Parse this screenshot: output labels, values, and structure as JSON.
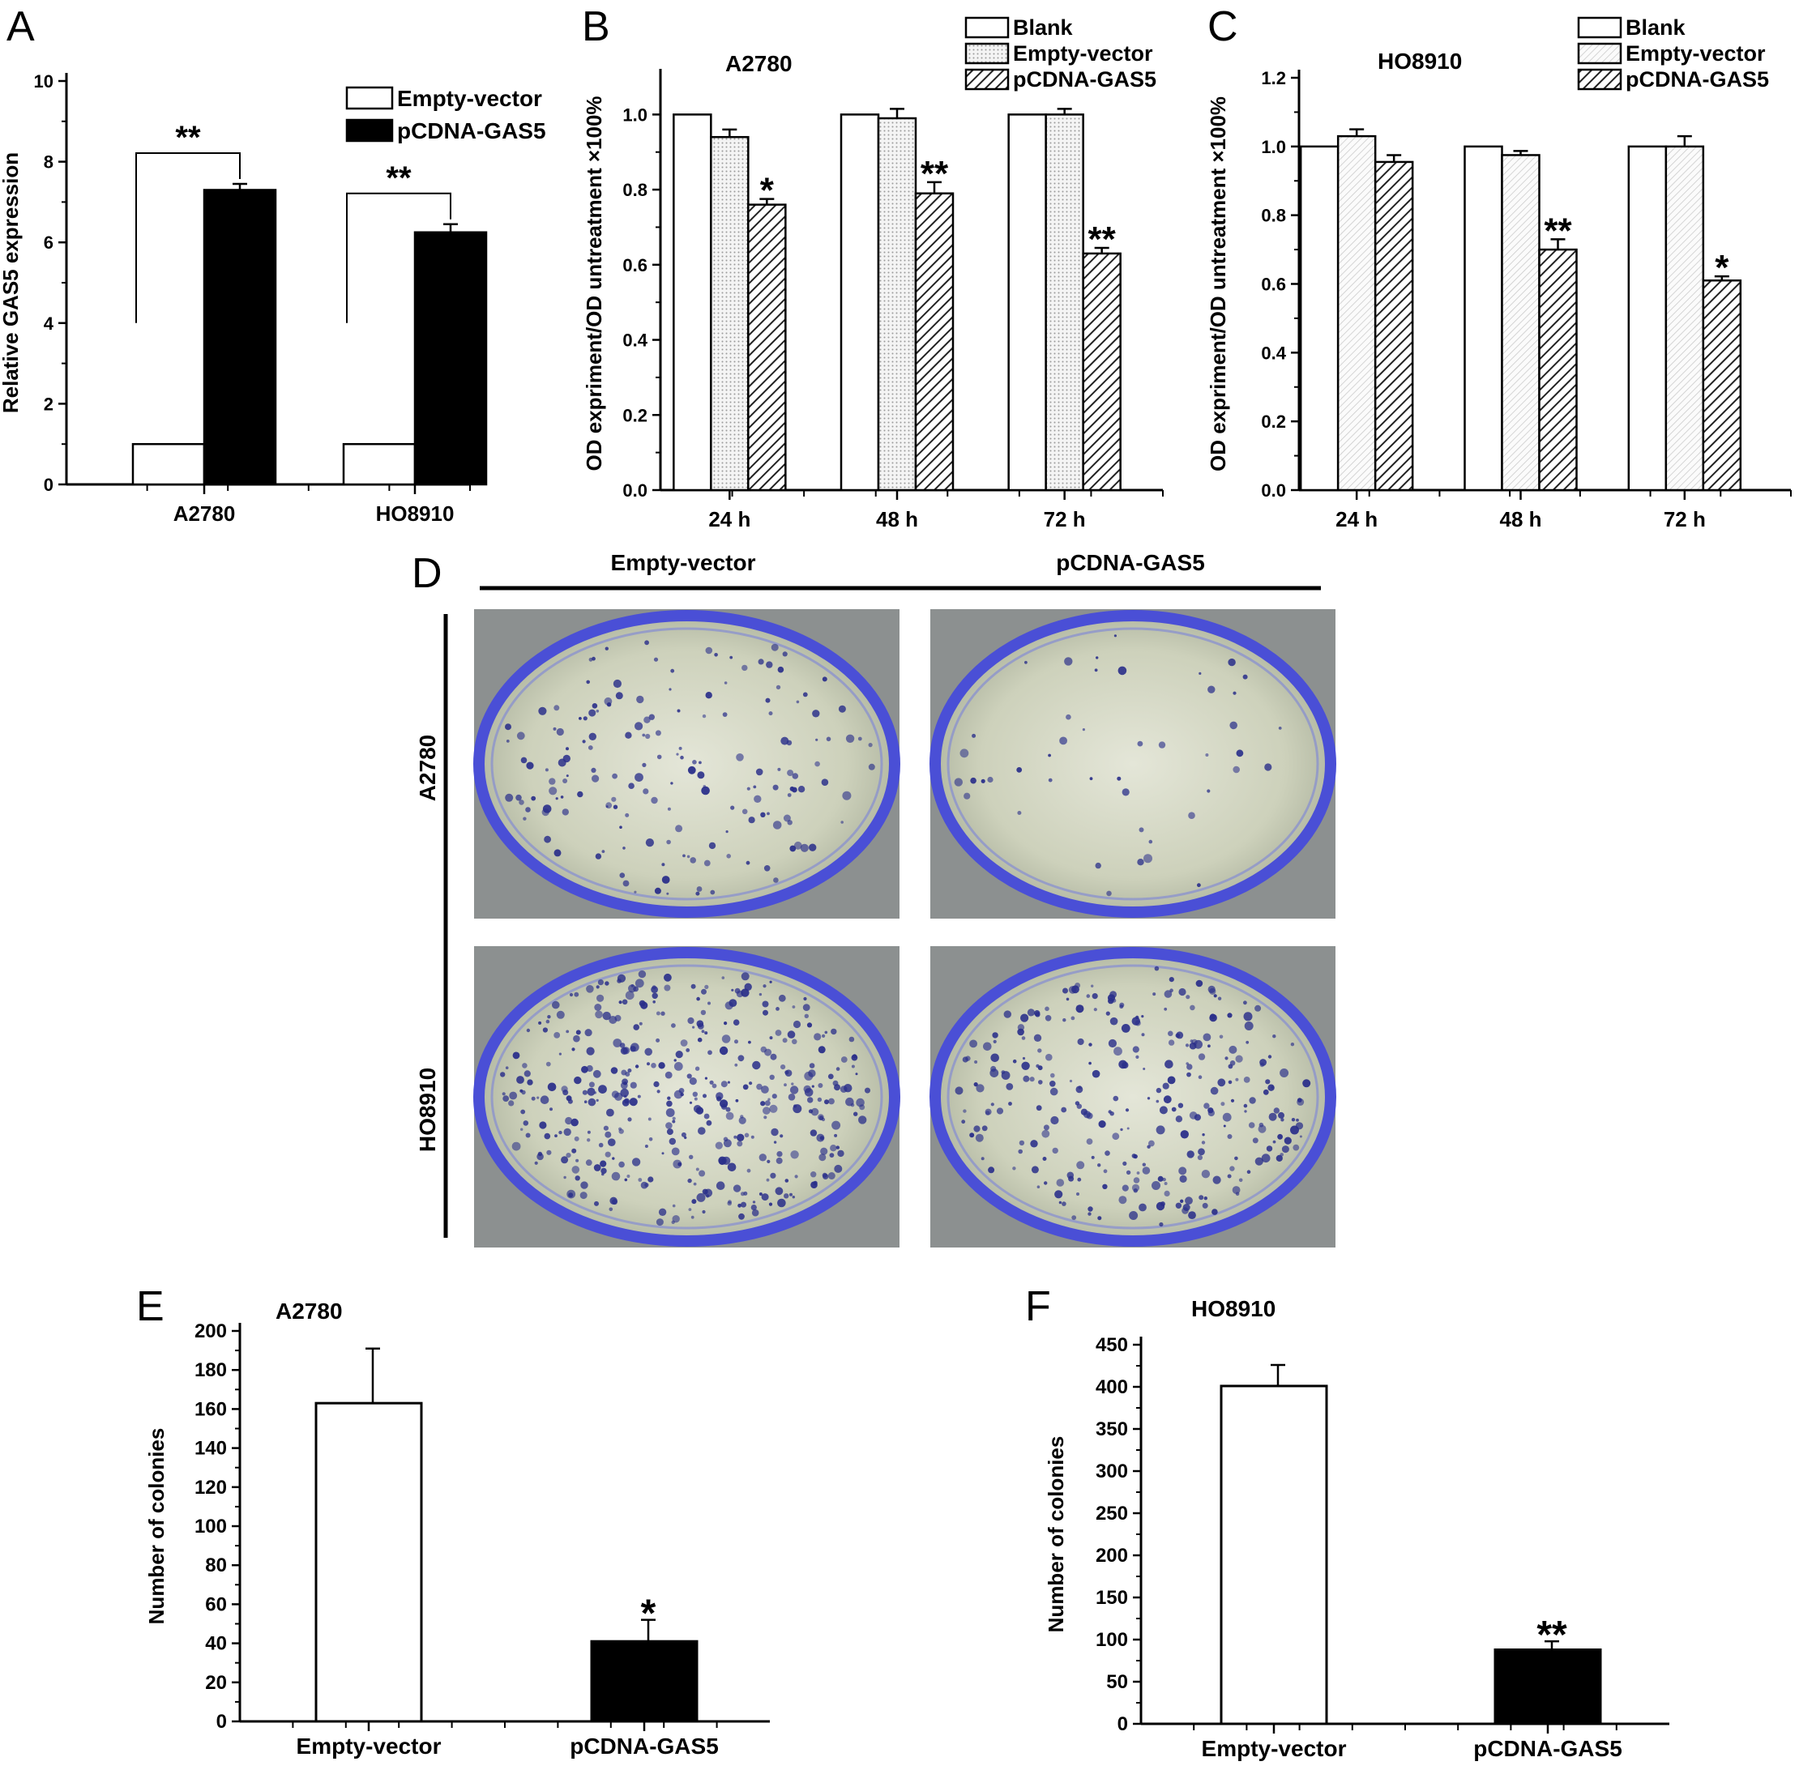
{
  "figure_labels": {
    "a": "A",
    "b": "B",
    "c": "C",
    "d": "D",
    "e": "E",
    "f": "F"
  },
  "photo_panel": {
    "col_left": "Empty-vector",
    "col_right": "pCDNA-GAS5",
    "row_top": "A2780",
    "row_bottom": "HO8910",
    "dish_color": "#4a4fd6",
    "medium_color": "#d9dcc8",
    "colony_color": "#2a2f8a"
  },
  "chart_data": [
    {
      "id": "A",
      "type": "bar",
      "title": "",
      "ylabel": "Relative GAS5 expression",
      "xlabel": "",
      "categories": [
        "A2780",
        "HO8910"
      ],
      "ylim": [
        0,
        10
      ],
      "yticks": [
        0,
        2,
        4,
        6,
        8,
        10
      ],
      "legend_position": "top-right",
      "series": [
        {
          "name": "Empty-vector",
          "values": [
            1.0,
            1.0
          ],
          "errors": [
            0,
            0
          ],
          "fill": "white"
        },
        {
          "name": "pCDNA-GAS5",
          "values": [
            7.3,
            6.25
          ],
          "errors": [
            0.15,
            0.2
          ],
          "fill": "black"
        }
      ],
      "annotations": [
        {
          "category": "A2780",
          "text": "**",
          "bracket": true
        },
        {
          "category": "HO8910",
          "text": "**",
          "bracket": true
        }
      ]
    },
    {
      "id": "B",
      "type": "bar",
      "title": "A2780",
      "ylabel": "OD expriment/OD untreatment ×100%",
      "xlabel": "",
      "categories": [
        "24 h",
        "48 h",
        "72 h"
      ],
      "ylim": [
        0,
        1.1
      ],
      "yticks": [
        0.0,
        0.2,
        0.4,
        0.6,
        0.8,
        1.0
      ],
      "tick_format": 1,
      "legend_position": "top-right",
      "series": [
        {
          "name": "Blank",
          "values": [
            1.0,
            1.0,
            1.0
          ],
          "errors": [
            0,
            0,
            0
          ],
          "fill": "white"
        },
        {
          "name": "Empty-vector",
          "values": [
            0.94,
            0.99,
            1.0
          ],
          "errors": [
            0.02,
            0.025,
            0.015
          ],
          "fill": "dots"
        },
        {
          "name": "pCDNA-GAS5",
          "values": [
            0.76,
            0.79,
            0.63
          ],
          "errors": [
            0.015,
            0.03,
            0.015
          ],
          "fill": "hatch"
        }
      ],
      "annotations": [
        {
          "category": "24 h",
          "series": "pCDNA-GAS5",
          "text": "*"
        },
        {
          "category": "48 h",
          "series": "pCDNA-GAS5",
          "text": "**"
        },
        {
          "category": "72 h",
          "series": "pCDNA-GAS5",
          "text": "**"
        }
      ]
    },
    {
      "id": "C",
      "type": "bar",
      "title": "HO8910",
      "ylabel": "OD expriment/OD untreatment ×100%",
      "xlabel": "",
      "categories": [
        "24 h",
        "48 h",
        "72 h"
      ],
      "ylim": [
        0,
        1.2
      ],
      "yticks": [
        0.0,
        0.2,
        0.4,
        0.6,
        0.8,
        1.0,
        1.2
      ],
      "tick_format": 1,
      "legend_position": "top-right",
      "series": [
        {
          "name": "Blank",
          "values": [
            1.0,
            1.0,
            1.0
          ],
          "errors": [
            0,
            0,
            0
          ],
          "fill": "white"
        },
        {
          "name": "Empty-vector",
          "values": [
            1.03,
            0.975,
            1.0
          ],
          "errors": [
            0.02,
            0.012,
            0.03
          ],
          "fill": "lightdiag"
        },
        {
          "name": "pCDNA-GAS5",
          "values": [
            0.955,
            0.7,
            0.61
          ],
          "errors": [
            0.02,
            0.03,
            0.012
          ],
          "fill": "hatch"
        }
      ],
      "annotations": [
        {
          "category": "48 h",
          "series": "pCDNA-GAS5",
          "text": "**"
        },
        {
          "category": "72 h",
          "series": "pCDNA-GAS5",
          "text": "*"
        }
      ]
    },
    {
      "id": "E",
      "type": "bar",
      "title": "A2780",
      "ylabel": "Number of colonies",
      "xlabel": "",
      "categories": [
        "Empty-vector",
        "pCDNA-GAS5"
      ],
      "ylim": [
        0,
        200
      ],
      "yticks": [
        0,
        20,
        40,
        60,
        80,
        100,
        120,
        140,
        160,
        180,
        200
      ],
      "values": [
        163,
        41
      ],
      "errors": [
        28,
        11
      ],
      "fills": [
        "white",
        "black"
      ],
      "annotations": [
        {
          "category": "pCDNA-GAS5",
          "text": "*"
        }
      ]
    },
    {
      "id": "F",
      "type": "bar",
      "title": "HO8910",
      "ylabel": "Number of colonies",
      "xlabel": "",
      "categories": [
        "Empty-vector",
        "pCDNA-GAS5"
      ],
      "ylim": [
        0,
        450
      ],
      "yticks": [
        0,
        50,
        100,
        150,
        200,
        250,
        300,
        350,
        400,
        450
      ],
      "values": [
        401,
        88
      ],
      "errors": [
        25,
        10
      ],
      "fills": [
        "white",
        "black"
      ],
      "annotations": [
        {
          "category": "pCDNA-GAS5",
          "text": "**"
        }
      ]
    }
  ]
}
